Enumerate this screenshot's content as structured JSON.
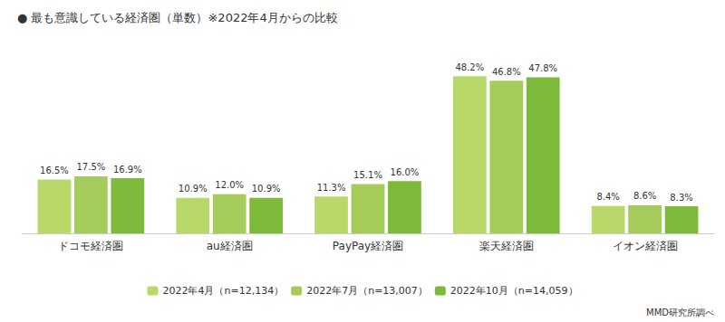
{
  "chart_data": {
    "type": "bar",
    "title": "● 最も意識している経済圏（単数）※2022年4月からの比較",
    "categories": [
      "ドコモ経済圏",
      "au経済圏",
      "PayPay経済圏",
      "楽天経済圏",
      "イオン経済圏"
    ],
    "series": [
      {
        "name": "2022年4月（n=12,134）",
        "color": "#b8d96a",
        "values": [
          16.5,
          10.9,
          11.3,
          48.2,
          8.4
        ],
        "value_labels": [
          "16.5%",
          "10.9%",
          "11.3%",
          "48.2%",
          "8.4%"
        ]
      },
      {
        "name": "2022年7月（n=13,007）",
        "color": "#a5cc5a",
        "values": [
          17.5,
          12.0,
          15.1,
          46.8,
          8.6
        ],
        "value_labels": [
          "17.5%",
          "12.0%",
          "15.1%",
          "46.8%",
          "8.6%"
        ]
      },
      {
        "name": "2022年10月（n=14,059）",
        "color": "#7dba3a",
        "values": [
          16.9,
          10.9,
          16.0,
          47.8,
          8.3
        ],
        "value_labels": [
          "16.9%",
          "10.9%",
          "16.0%",
          "47.8%",
          "8.3%"
        ]
      }
    ],
    "ylim": [
      0,
      56
    ],
    "tick_labels": "x",
    "grid": false,
    "legend": "bottom",
    "data_labels": true,
    "annotations": [
      "MMD研究所調べ"
    ]
  }
}
